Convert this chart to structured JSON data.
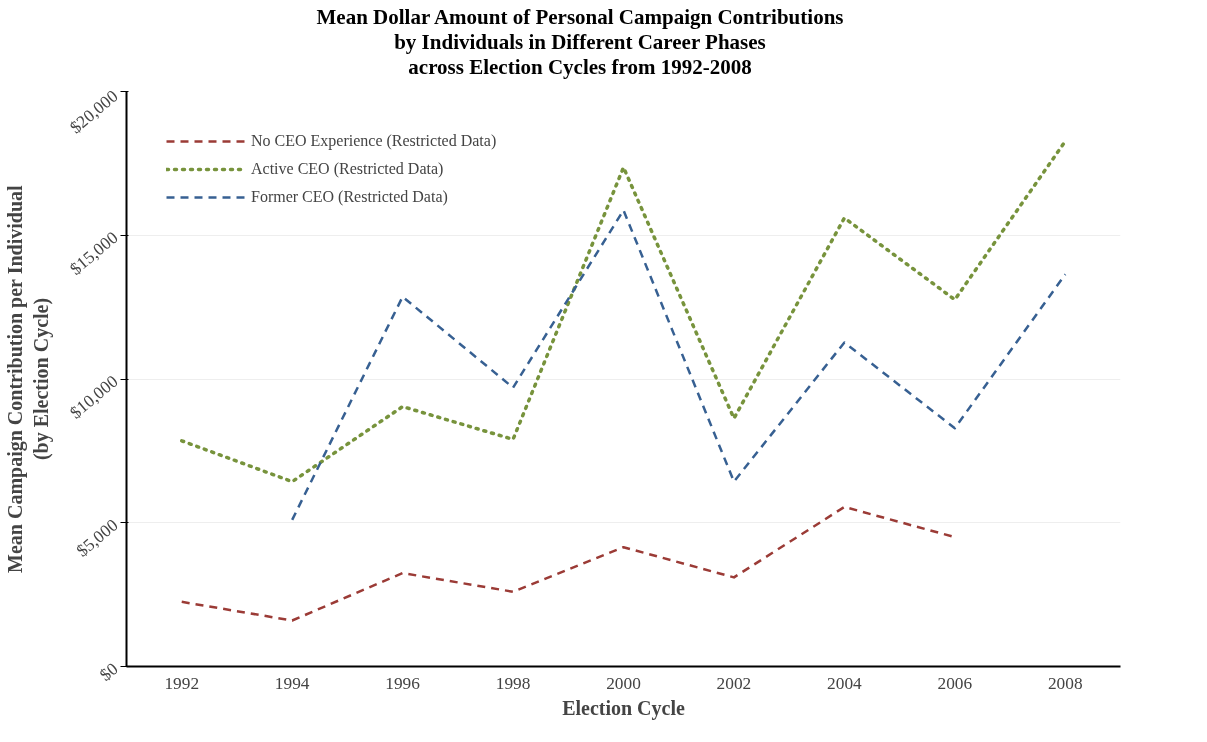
{
  "chart_data": {
    "type": "line",
    "title": "Mean Dollar Amount of Personal Campaign Contributions\nby Individuals in Different Career Phases\nacross Election Cycles from 1992-2008",
    "xlabel": "Election Cycle",
    "ylabel": "Mean Campaign Contribution per Individual\n(by Election Cycle)",
    "categories": [
      "1992",
      "1994",
      "1996",
      "1998",
      "2000",
      "2002",
      "2004",
      "2006",
      "2008"
    ],
    "series": [
      {
        "name": "No CEO Experience (Restricted Data)",
        "color": "#9b3b36",
        "line_style": "dashed",
        "values": [
          2250,
          1600,
          3250,
          2600,
          4150,
          3100,
          5550,
          4500,
          null
        ]
      },
      {
        "name": "Active CEO (Restricted Data)",
        "color": "#77933c",
        "line_style": "dotted",
        "values": [
          7850,
          6430,
          9040,
          7900,
          17360,
          8630,
          15600,
          12760,
          18270
        ]
      },
      {
        "name": "Former CEO (Restricted Data)",
        "color": "#376092",
        "line_style": "dashed",
        "values": [
          null,
          5100,
          12860,
          9700,
          15870,
          6430,
          11270,
          8290,
          13640
        ]
      }
    ],
    "ylim": [
      0,
      20000
    ],
    "yticks": [
      {
        "value": 0,
        "label": "$0"
      },
      {
        "value": 5000,
        "label": "$5,000"
      },
      {
        "value": 10000,
        "label": "$10,000"
      },
      {
        "value": 15000,
        "label": "$15,000"
      },
      {
        "value": 20000,
        "label": "$20,000"
      }
    ],
    "grid": "y",
    "legend": "top left"
  }
}
